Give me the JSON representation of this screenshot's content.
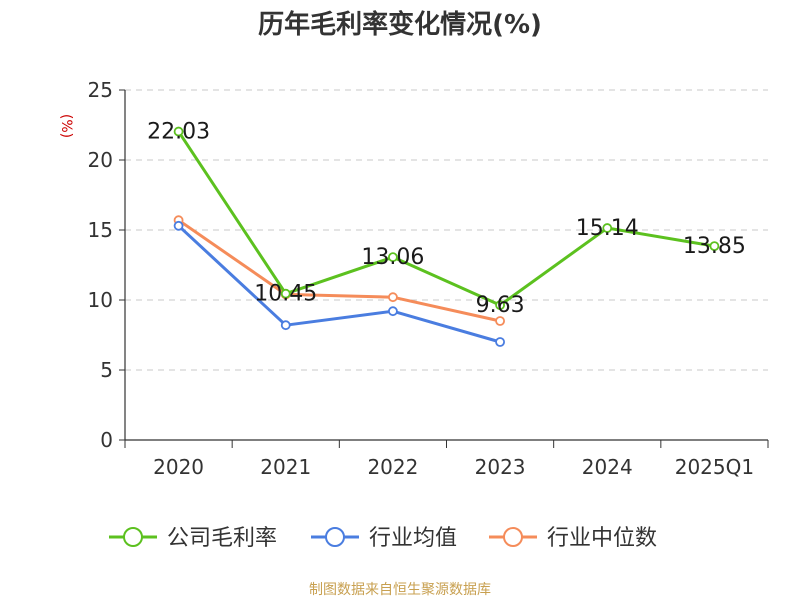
{
  "chart_data": {
    "type": "line",
    "title": "历年毛利率变化情况(%)",
    "ylabel": "(%)",
    "xlabel": "",
    "categories": [
      "2020",
      "2021",
      "2022",
      "2023",
      "2024",
      "2025Q1"
    ],
    "ylim": [
      0,
      25
    ],
    "yticks": [
      0,
      5,
      10,
      15,
      20,
      25
    ],
    "grid": true,
    "grid_style": "dashed",
    "legend_position": "bottom",
    "series": [
      {
        "name": "公司毛利率",
        "color": "#5cc11f",
        "values": [
          22.03,
          10.45,
          13.06,
          9.63,
          15.14,
          13.85
        ],
        "labels": [
          "22.03",
          "10.45",
          "13.06",
          "9.63",
          "15.14",
          "13.85"
        ]
      },
      {
        "name": "行业均值",
        "color": "#4a7de0",
        "values": [
          15.3,
          8.2,
          9.2,
          7.0,
          null,
          null
        ]
      },
      {
        "name": "行业中位数",
        "color": "#f58c5a",
        "values": [
          15.7,
          10.4,
          10.2,
          8.5,
          null,
          null
        ]
      }
    ]
  },
  "footer": {
    "source": "制图数据来自恒生聚源数据库",
    "color": "#c8a050"
  }
}
